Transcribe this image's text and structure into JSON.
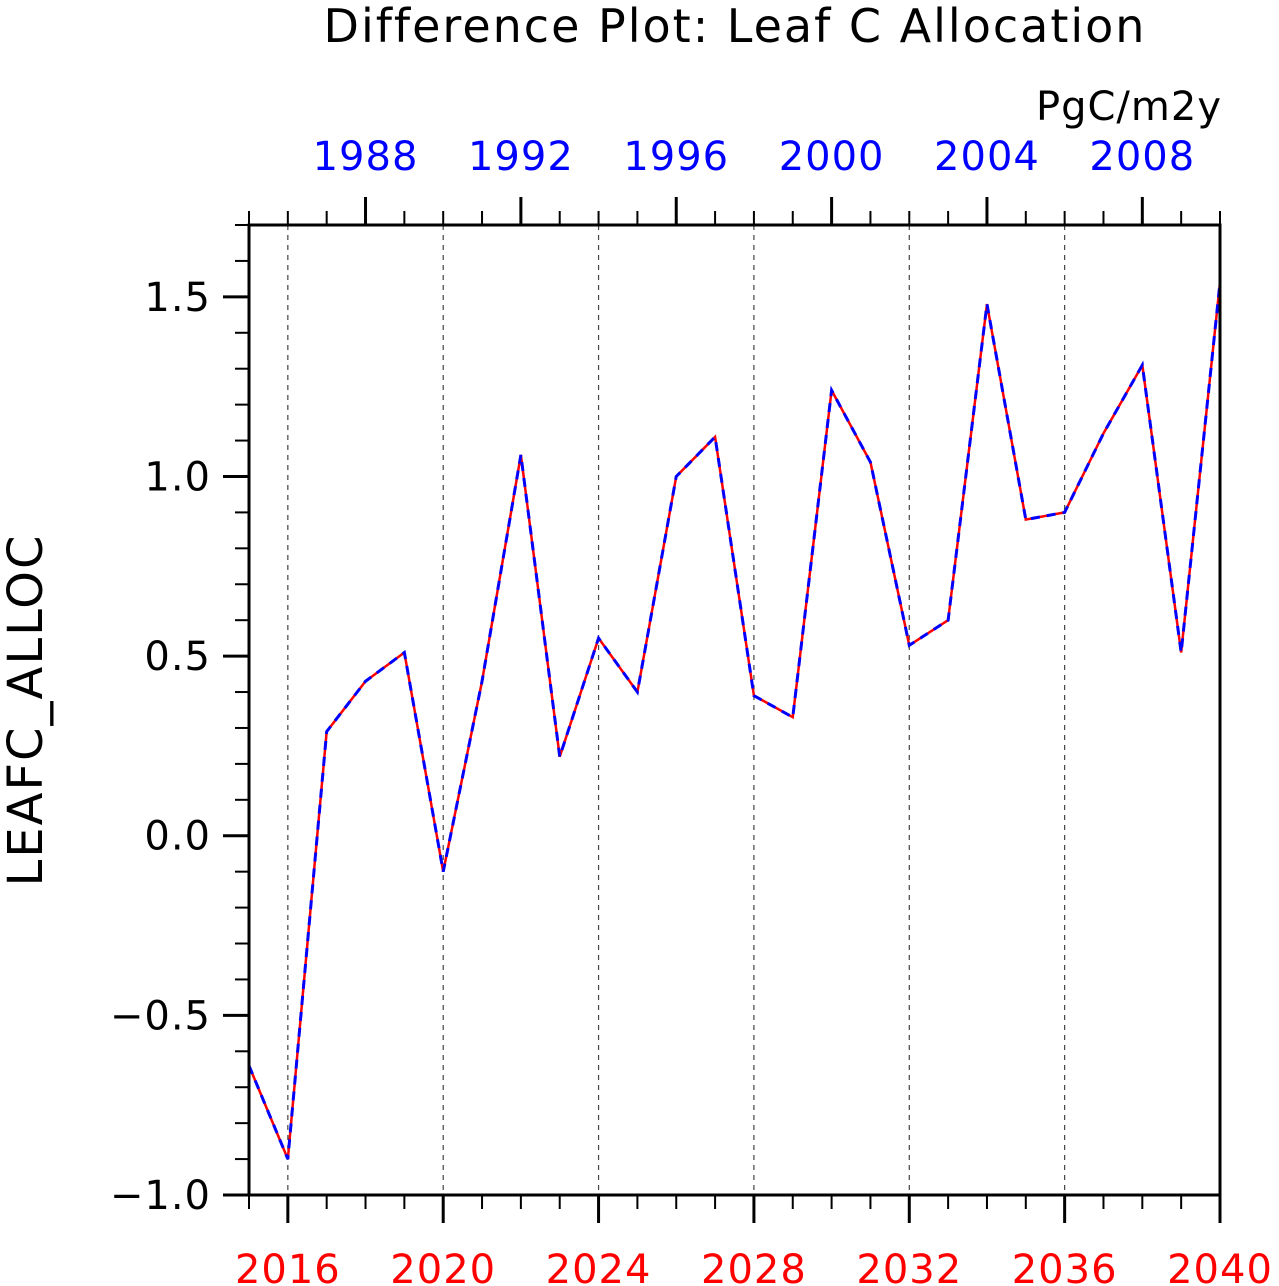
{
  "chart_data": {
    "type": "line",
    "title": "Difference Plot: Leaf C Allocation",
    "units": "PgC/m2y",
    "ylabel": "LEAFC_ALLOC",
    "ylim": [
      -1.0,
      1.7
    ],
    "yticks": [
      {
        "value": -1.0,
        "label": "−1.0"
      },
      {
        "value": -0.5,
        "label": "−0.5"
      },
      {
        "value": 0.0,
        "label": "0.0"
      },
      {
        "value": 0.5,
        "label": "0.5"
      },
      {
        "value": 1.0,
        "label": "1.0"
      },
      {
        "value": 1.5,
        "label": "1.5"
      }
    ],
    "x_bottom": {
      "range": [
        2015,
        2040
      ],
      "tick_labels": [
        "2016",
        "2020",
        "2024",
        "2028",
        "2032",
        "2036",
        "2040"
      ],
      "tick_values": [
        2016,
        2020,
        2024,
        2028,
        2032,
        2036,
        2040
      ],
      "color": "#ff0000"
    },
    "x_top": {
      "range": [
        1985,
        2010
      ],
      "tick_labels": [
        "1988",
        "1992",
        "1996",
        "2000",
        "2004",
        "2008"
      ],
      "tick_values": [
        1988,
        1992,
        1996,
        2000,
        2004,
        2008
      ],
      "color": "#0000ff"
    },
    "grid": "vertical dashed at major bottom ticks",
    "x": [
      2015,
      2016,
      2017,
      2018,
      2019,
      2020,
      2021,
      2022,
      2023,
      2024,
      2025,
      2026,
      2027,
      2028,
      2029,
      2030,
      2031,
      2032,
      2033,
      2034,
      2035,
      2036,
      2037,
      2038,
      2039,
      2040
    ],
    "series": [
      {
        "color": "#ff0000",
        "style": "solid",
        "values": [
          -0.64,
          -0.9,
          0.29,
          0.43,
          0.51,
          -0.1,
          0.43,
          1.06,
          0.22,
          0.55,
          0.4,
          1.0,
          1.11,
          0.39,
          0.33,
          1.24,
          1.04,
          0.53,
          0.6,
          1.48,
          0.88,
          0.9,
          1.12,
          1.31,
          0.51,
          1.54
        ]
      },
      {
        "color": "#0000ff",
        "style": "dashed",
        "values": [
          -0.64,
          -0.9,
          0.29,
          0.43,
          0.51,
          -0.1,
          0.43,
          1.06,
          0.22,
          0.55,
          0.4,
          1.0,
          1.11,
          0.39,
          0.33,
          1.24,
          1.04,
          0.53,
          0.6,
          1.48,
          0.88,
          0.9,
          1.12,
          1.31,
          0.51,
          1.54
        ]
      }
    ]
  }
}
